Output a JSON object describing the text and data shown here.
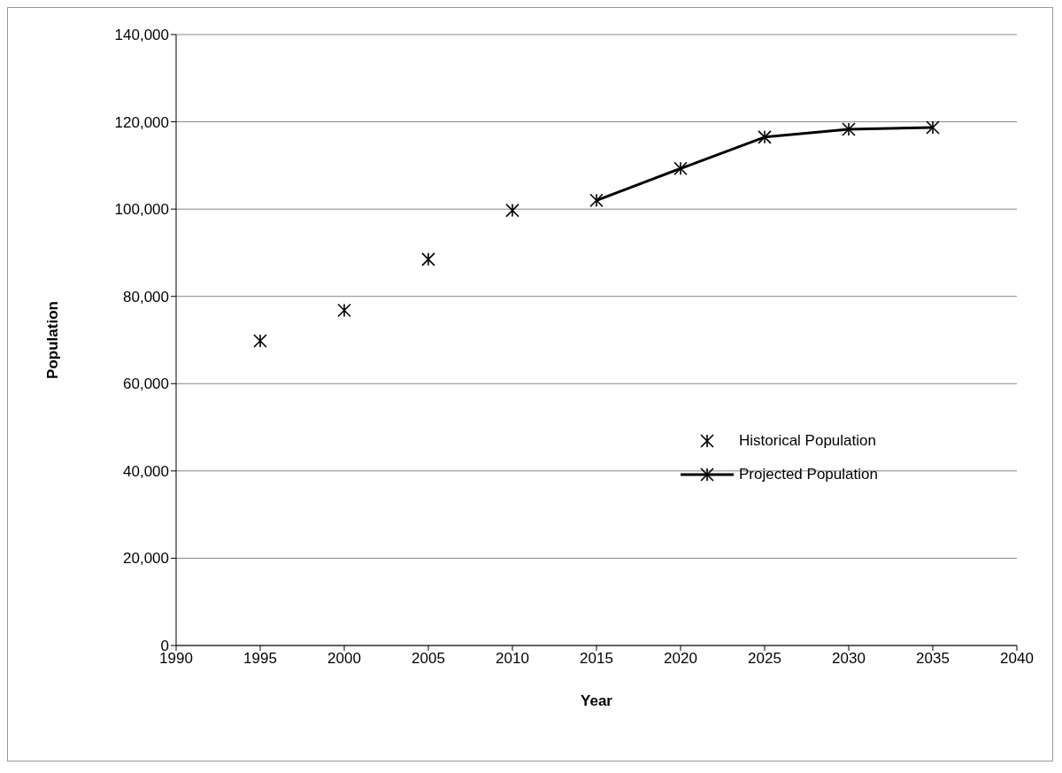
{
  "chart_data": {
    "type": "scatter",
    "xlabel": "Year",
    "ylabel": "Population",
    "xlim": [
      1990,
      2040
    ],
    "xticks": [
      1990,
      1995,
      2000,
      2005,
      2010,
      2015,
      2020,
      2025,
      2030,
      2035,
      2040
    ],
    "ylim": [
      0,
      140000
    ],
    "yticks": [
      0,
      {
        "value": 20000,
        "label": "20,000"
      },
      {
        "value": 40000,
        "label": "40,000"
      },
      {
        "value": 60000,
        "label": "60,000"
      },
      {
        "value": 80000,
        "label": "80,000"
      },
      {
        "value": 100000,
        "label": "100,000"
      },
      {
        "value": 120000,
        "label": "120,000"
      },
      {
        "value": 140000,
        "label": "140,000"
      }
    ],
    "grid": "y",
    "legend": "right",
    "marker": "cross",
    "line_style": "solid",
    "series": [
      {
        "name": "Historical Population",
        "color": "#000000",
        "x": [
          1995,
          2000,
          2005,
          2010
        ],
        "values": [
          69800,
          76800,
          88500,
          99700
        ]
      },
      {
        "name": "Projected Population",
        "type": "line",
        "color": "#000000",
        "x": [
          2015,
          2020,
          2025,
          2030,
          2035
        ],
        "values": [
          102000,
          109300,
          116500,
          118300,
          118700
        ]
      }
    ]
  }
}
